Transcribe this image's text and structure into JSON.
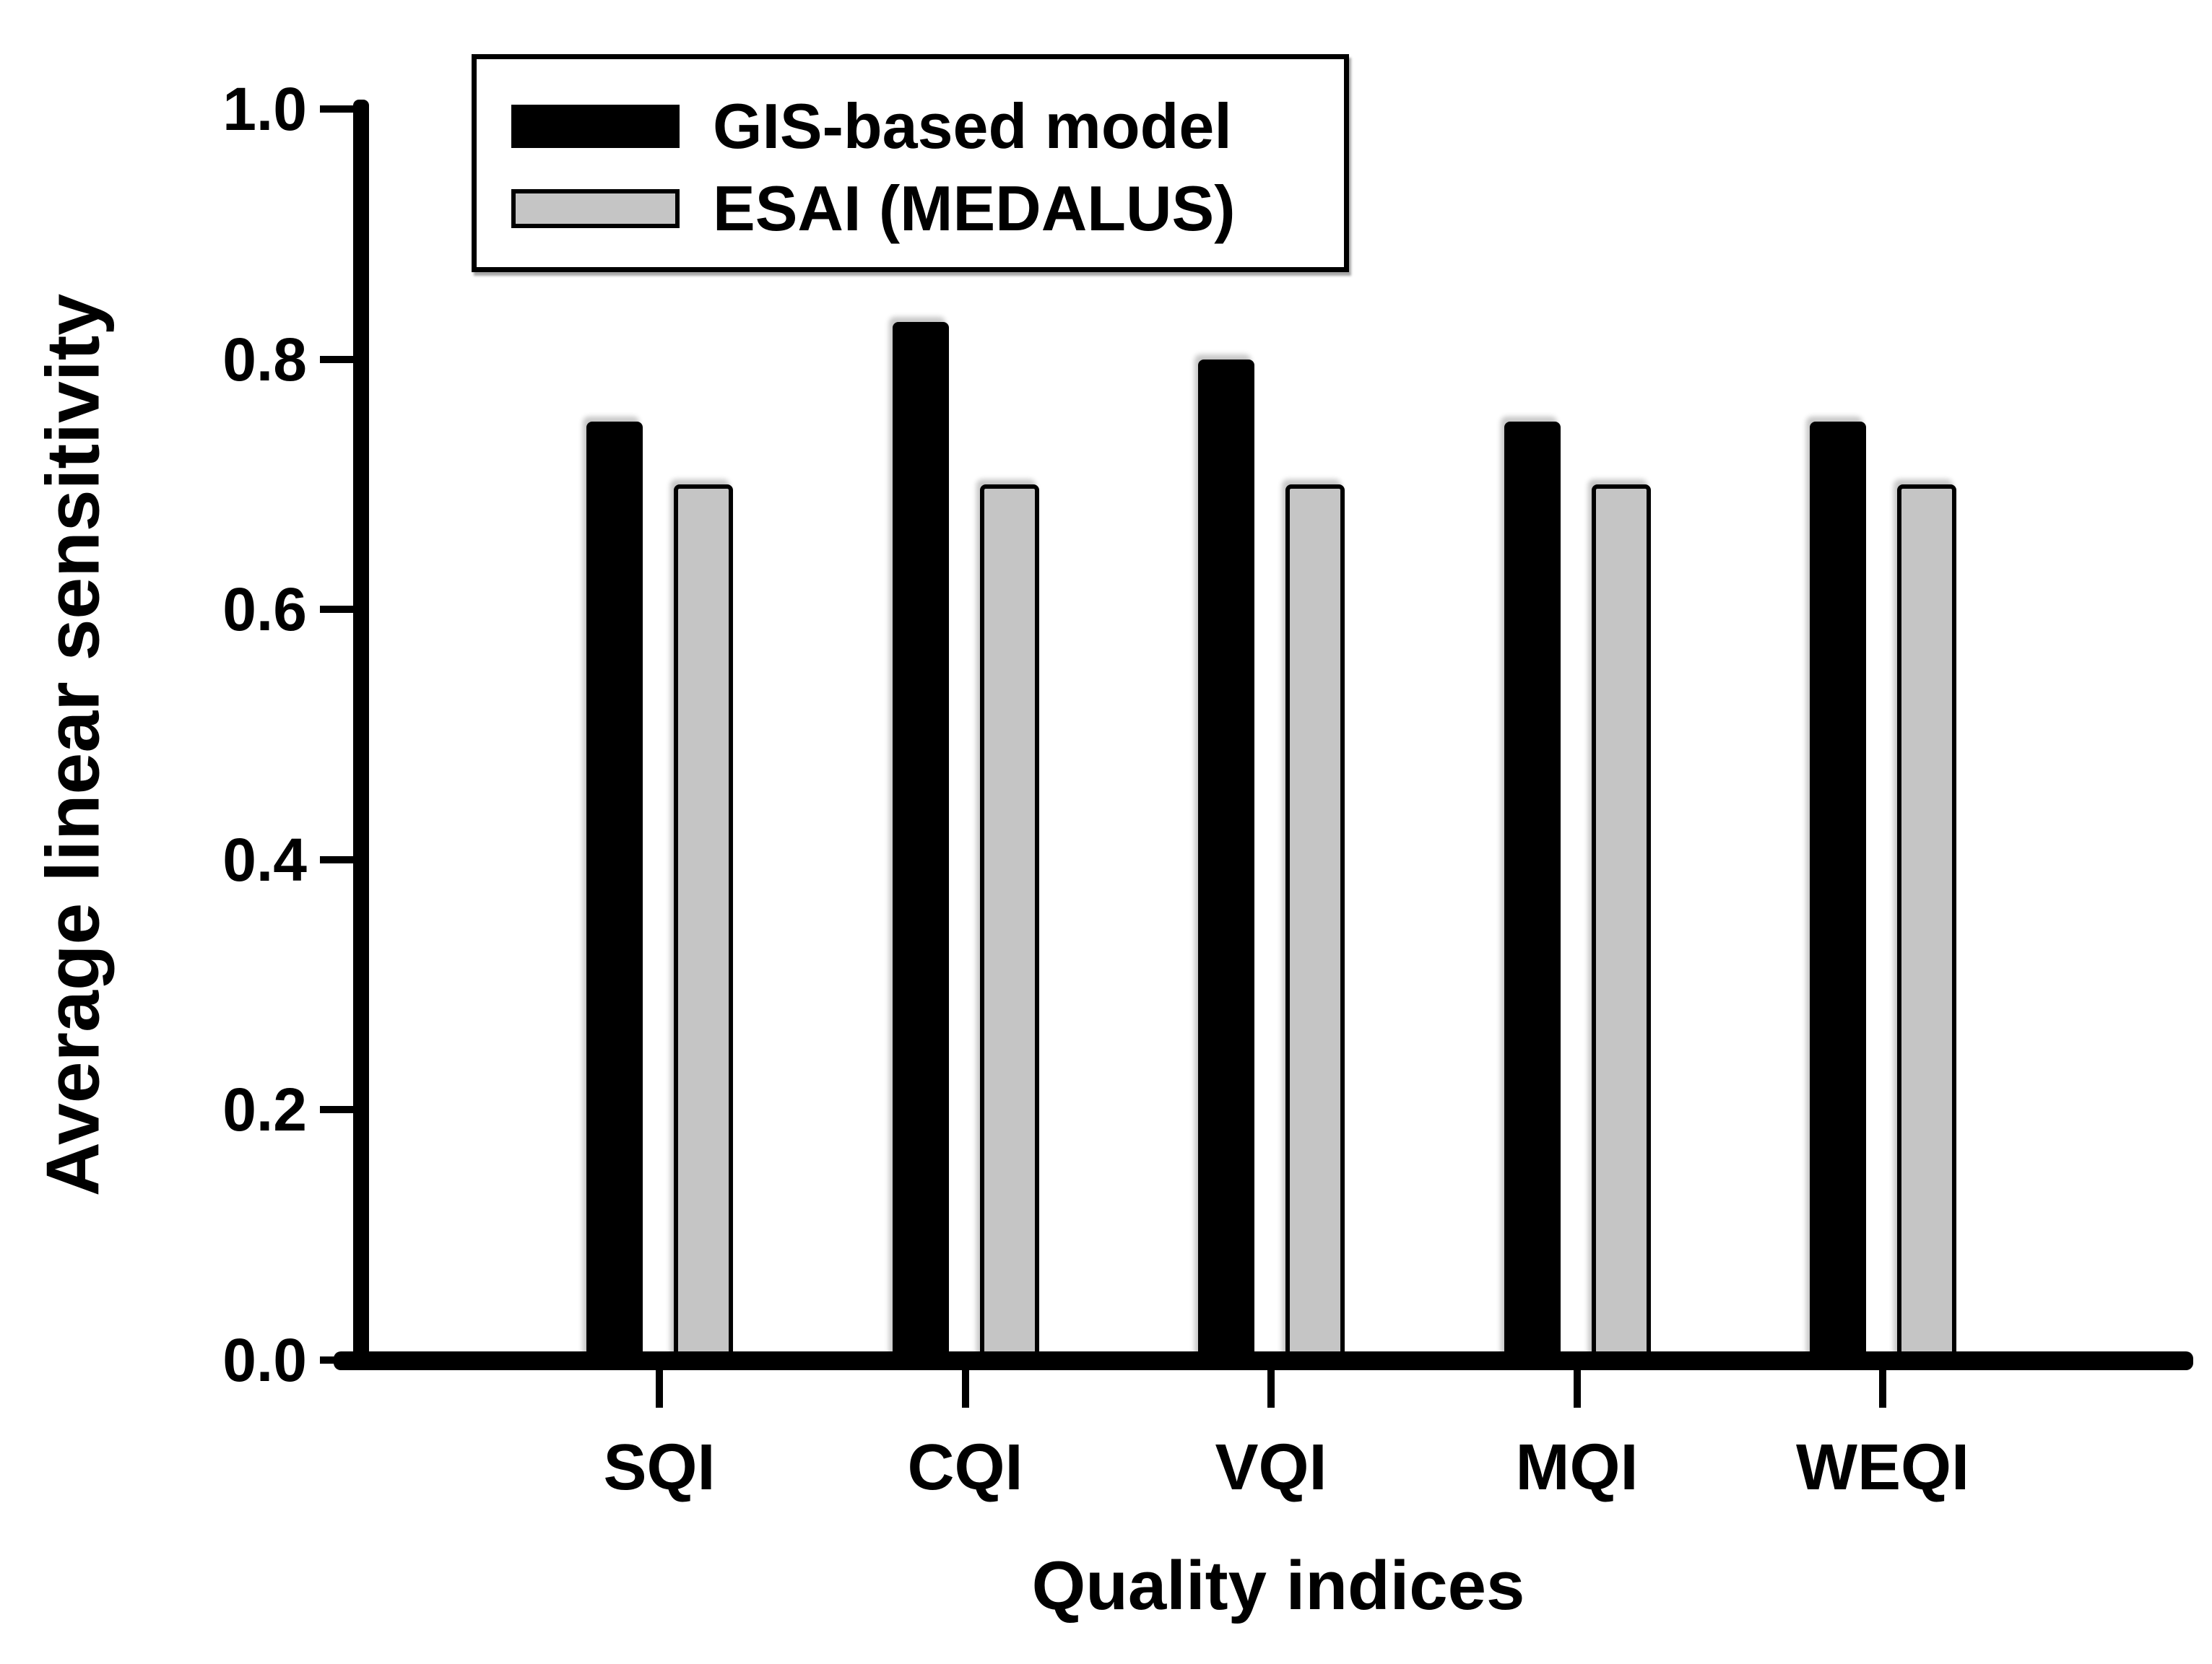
{
  "chart_data": {
    "type": "bar",
    "title": "",
    "categories": [
      "SQI",
      "CQI",
      "VQI",
      "MQI",
      "WEQI"
    ],
    "series": [
      {
        "name": "GIS-based model",
        "color": "#000000",
        "border_color": "#000000",
        "values": [
          0.75,
          0.83,
          0.8,
          0.75,
          0.75
        ]
      },
      {
        "name": "ESAI (MEDALUS)",
        "color": "#c5c5c5",
        "border_color": "#000000",
        "values": [
          0.7,
          0.7,
          0.7,
          0.7,
          0.7
        ]
      }
    ],
    "xlabel": "Quality indices",
    "ylabel": "Average linear sensitivity",
    "ylim": [
      0.0,
      1.0
    ],
    "y_tick_values": [
      0.0,
      0.2,
      0.4,
      0.6,
      0.8,
      1.0
    ],
    "y_tick_labels": [
      "0.0",
      "0.2",
      "0.4",
      "0.6",
      "0.8",
      "1.0"
    ],
    "grid": "off",
    "legend_position": "top-left"
  }
}
